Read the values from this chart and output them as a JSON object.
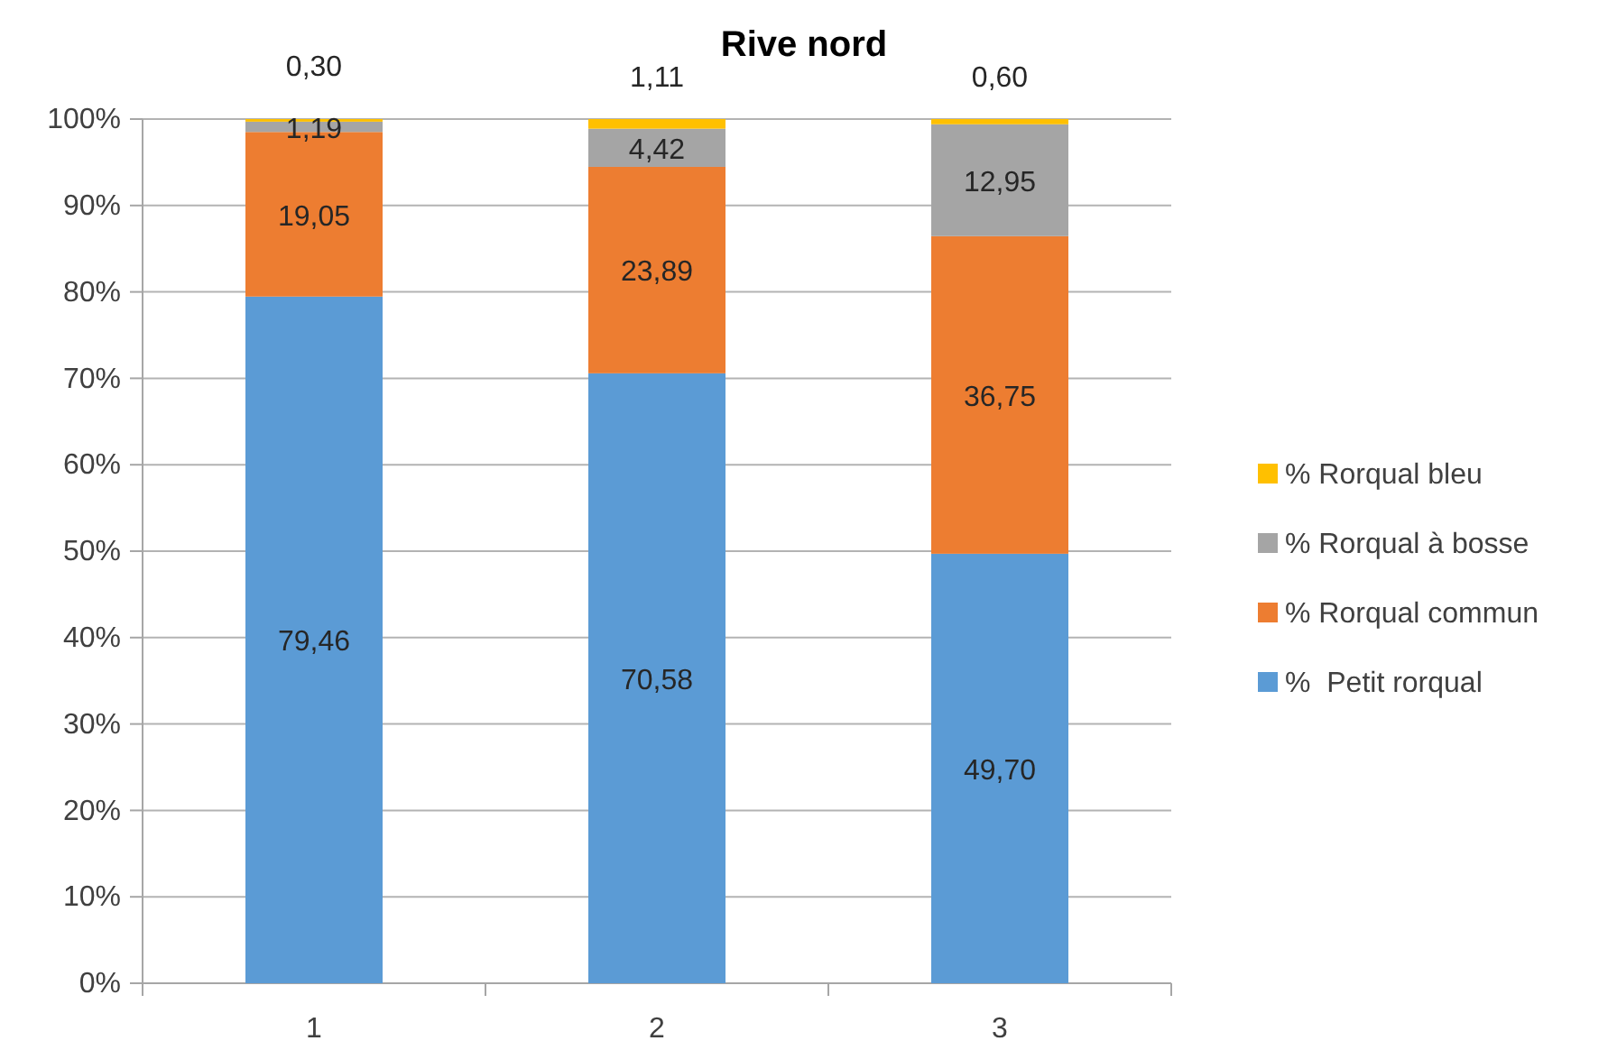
{
  "chart_data": {
    "type": "bar",
    "title": "Rive nord",
    "stacked": true,
    "categories": [
      "1",
      "2",
      "3"
    ],
    "series": [
      {
        "name": "%  Petit rorqual",
        "color": "#5b9bd5",
        "values": [
          79.46,
          70.58,
          49.7
        ],
        "value_labels": [
          "79,46",
          "70,58",
          "49,70"
        ]
      },
      {
        "name": "% Rorqual commun",
        "color": "#ed7d31",
        "values": [
          19.05,
          23.89,
          36.75
        ],
        "value_labels": [
          "19,05",
          "23,89",
          "36,75"
        ]
      },
      {
        "name": "% Rorqual à bosse",
        "color": "#a5a5a5",
        "values": [
          1.19,
          4.42,
          12.95
        ],
        "value_labels": [
          "1,19",
          "4,42",
          "12,95"
        ]
      },
      {
        "name": "% Rorqual bleu",
        "color": "#ffc000",
        "values": [
          0.3,
          1.11,
          0.6
        ],
        "value_labels": [
          "0,30",
          "1,11",
          "0,60"
        ]
      }
    ],
    "ylim": [
      0,
      100
    ],
    "yticks": [
      {
        "value": 0,
        "label": "0%"
      },
      {
        "value": 10,
        "label": "10%"
      },
      {
        "value": 20,
        "label": "20%"
      },
      {
        "value": 30,
        "label": "30%"
      },
      {
        "value": 40,
        "label": "40%"
      },
      {
        "value": 50,
        "label": "50%"
      },
      {
        "value": 60,
        "label": "60%"
      },
      {
        "value": 70,
        "label": "70%"
      },
      {
        "value": 80,
        "label": "80%"
      },
      {
        "value": 90,
        "label": "90%"
      },
      {
        "value": 100,
        "label": "100%"
      }
    ],
    "grid": "y",
    "legend": "right"
  }
}
